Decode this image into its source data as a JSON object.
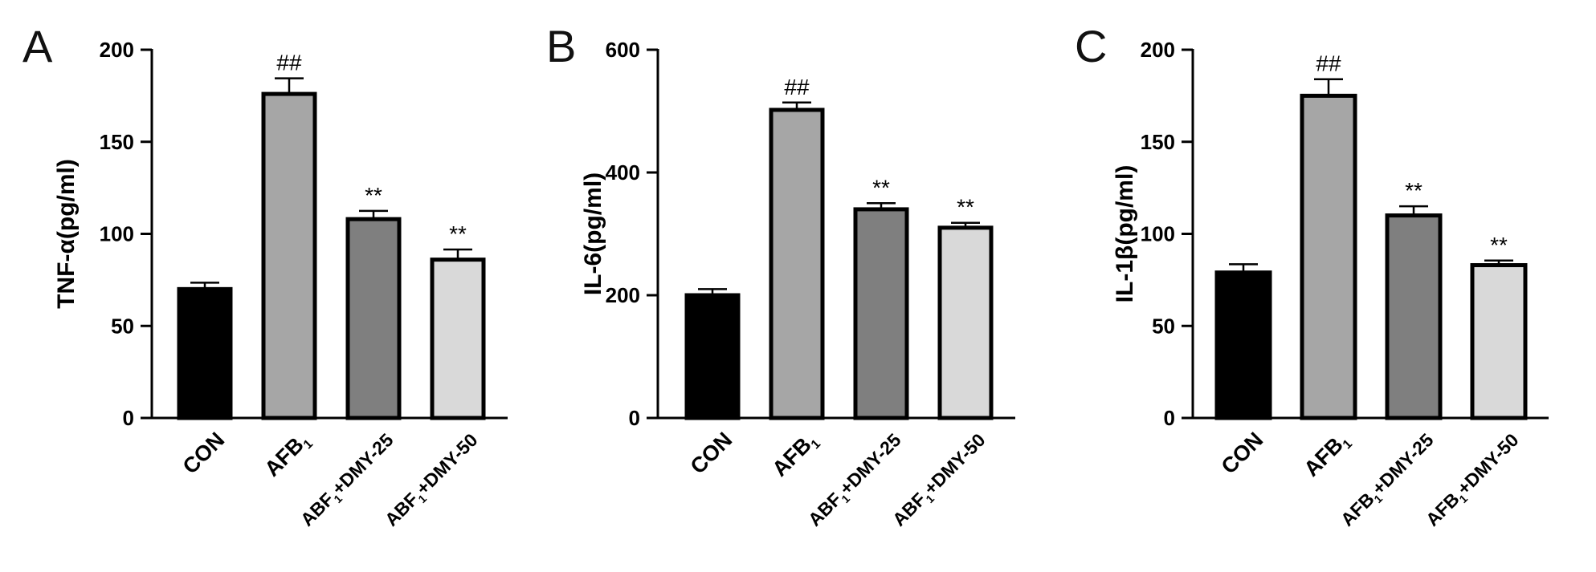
{
  "chart_data": [
    {
      "type": "bar",
      "panel": "A",
      "ylabel": "TNF-α(pg/ml)",
      "ylim": [
        0,
        200
      ],
      "yticks": [
        0,
        50,
        100,
        150,
        200
      ],
      "categories": [
        {
          "main": "CON",
          "sub": "",
          "tail": ""
        },
        {
          "main": "AFB",
          "sub": "1",
          "tail": ""
        },
        {
          "main": "ABF",
          "sub": "1",
          "tail": "+DMY-25"
        },
        {
          "main": "ABF",
          "sub": "1",
          "tail": "+DMY-50"
        }
      ],
      "values": [
        70,
        176,
        108,
        86
      ],
      "errors": [
        3.5,
        8.5,
        4.5,
        5.5
      ],
      "significance": [
        "",
        "##",
        "**",
        "**"
      ],
      "colors": [
        "#000000",
        "#a6a6a6",
        "#7f7f7f",
        "#d9d9d9"
      ]
    },
    {
      "type": "bar",
      "panel": "B",
      "ylabel": "IL-6(pg/ml)",
      "ylim": [
        0,
        600
      ],
      "yticks": [
        0,
        200,
        400,
        600
      ],
      "categories": [
        {
          "main": "CON",
          "sub": "",
          "tail": ""
        },
        {
          "main": "AFB",
          "sub": "1",
          "tail": ""
        },
        {
          "main": "ABF",
          "sub": "1",
          "tail": "+DMY-25"
        },
        {
          "main": "ABF",
          "sub": "1",
          "tail": "+DMY-50"
        }
      ],
      "values": [
        200,
        502,
        340,
        310
      ],
      "errors": [
        10,
        12,
        10,
        8
      ],
      "significance": [
        "",
        "##",
        "**",
        "**"
      ],
      "colors": [
        "#000000",
        "#a6a6a6",
        "#7f7f7f",
        "#d9d9d9"
      ]
    },
    {
      "type": "bar",
      "panel": "C",
      "ylabel": "IL-1β(pg/ml)",
      "ylim": [
        0,
        200
      ],
      "yticks": [
        0,
        50,
        100,
        150,
        200
      ],
      "categories": [
        {
          "main": "CON",
          "sub": "",
          "tail": ""
        },
        {
          "main": "AFB",
          "sub": "1",
          "tail": ""
        },
        {
          "main": "AFB",
          "sub": "1",
          "tail": "+DMY-25"
        },
        {
          "main": "AFB",
          "sub": "1",
          "tail": "+DMY-50"
        }
      ],
      "values": [
        79,
        175,
        110,
        83
      ],
      "errors": [
        4.5,
        9,
        5,
        2.5
      ],
      "significance": [
        "",
        "##",
        "**",
        "**"
      ],
      "colors": [
        "#000000",
        "#a6a6a6",
        "#7f7f7f",
        "#d9d9d9"
      ]
    }
  ]
}
